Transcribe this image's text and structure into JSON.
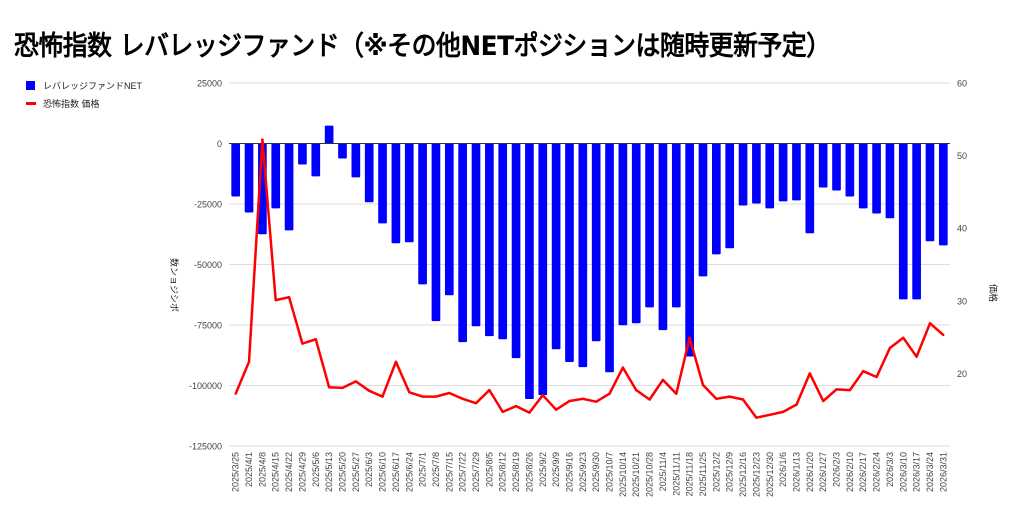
{
  "chart_data": {
    "type": "bar+line",
    "title": "恐怖指数 レバレッジファンド（※その他NETポジションは随時更新予定）",
    "xlabel": "",
    "ylabel_left": "ポジション数",
    "ylabel_left_rendered": "数ンョジシポ",
    "ylabel_right": "価格",
    "ylim_left": [
      -125000,
      25000
    ],
    "yticks_left": [
      "25000",
      "0",
      "-25000",
      "-50000",
      "-75000",
      "-100000",
      "-125000"
    ],
    "ylim_right": [
      10,
      60
    ],
    "yticks_right": [
      "60",
      "50",
      "40",
      "30",
      "20"
    ],
    "grid": true,
    "legend_position": "top-left",
    "categories": [
      "2025/3/25",
      "2025/4/1",
      "2025/4/8",
      "2025/4/15",
      "2025/4/22",
      "2025/4/29",
      "2025/5/6",
      "2025/5/13",
      "2025/5/20",
      "2025/5/27",
      "2025/6/3",
      "2025/6/10",
      "2025/6/17",
      "2025/6/24",
      "2025/7/1",
      "2025/7/8",
      "2025/7/15",
      "2025/7/22",
      "2025/7/29",
      "2025/8/5",
      "2025/8/12",
      "2025/8/19",
      "2025/8/26",
      "2025/9/2",
      "2025/9/9",
      "2025/9/16",
      "2025/9/23",
      "2025/9/30",
      "2025/10/7",
      "2025/10/14",
      "2025/10/21",
      "2025/10/28",
      "2025/11/4",
      "2025/11/11",
      "2025/11/18",
      "2025/11/25",
      "2025/12/2",
      "2025/12/9",
      "2025/12/16",
      "2025/12/23",
      "2025/12/30",
      "2026/1/6",
      "2026/1/13",
      "2026/1/20",
      "2026/1/27",
      "2026/2/3",
      "2026/2/10",
      "2026/2/17",
      "2026/2/24",
      "2026/3/3",
      "2026/3/10",
      "2026/3/17",
      "2026/3/24",
      "2026/3/31"
    ],
    "series": [
      {
        "name": "レバレッジファンドNET",
        "type": "bar",
        "axis": "left",
        "color": "#0000ff",
        "values": [
          -21900,
          -28500,
          -37500,
          -26800,
          -35900,
          -8700,
          -13600,
          7400,
          -6200,
          -14000,
          -24300,
          -33000,
          -41200,
          -40800,
          -58200,
          -73400,
          -62700,
          -82100,
          -75500,
          -79600,
          -80900,
          -88700,
          -105600,
          -104000,
          -85000,
          -90300,
          -92400,
          -81700,
          -94500,
          -75100,
          -74300,
          -67700,
          -77100,
          -67700,
          -88000,
          -54900,
          -45800,
          -43300,
          -25600,
          -24800,
          -26800,
          -23900,
          -23500,
          -37100,
          -18200,
          -19400,
          -21900,
          -26800,
          -28900,
          -30900,
          -64400,
          -64400,
          -40400,
          -42100
        ]
      },
      {
        "name": "恐怖指数 価格",
        "type": "line",
        "axis": "right",
        "color": "#ff0000",
        "values": [
          17.2,
          21.6,
          52.2,
          30.1,
          30.5,
          24.1,
          24.7,
          18.1,
          18.0,
          18.9,
          17.6,
          16.8,
          21.6,
          17.4,
          16.8,
          16.8,
          17.3,
          16.5,
          15.9,
          17.7,
          14.7,
          15.5,
          14.6,
          17.0,
          15.0,
          16.2,
          16.5,
          16.1,
          17.2,
          20.8,
          17.7,
          16.4,
          19.1,
          17.2,
          24.9,
          18.4,
          16.5,
          16.8,
          16.4,
          13.9,
          14.3,
          14.7,
          15.7,
          20.0,
          16.2,
          17.8,
          17.7,
          20.3,
          19.5,
          23.5,
          24.9,
          22.3,
          26.9,
          25.3
        ]
      }
    ]
  }
}
